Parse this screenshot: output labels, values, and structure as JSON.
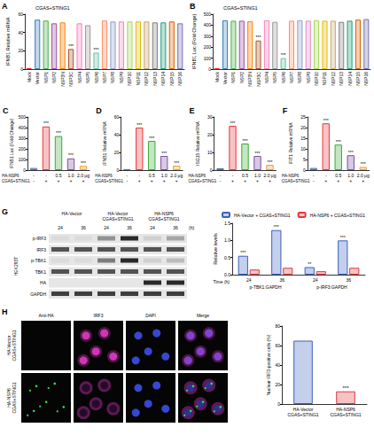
{
  "chart_data": [
    {
      "panel": "A",
      "type": "bar",
      "annotation": "CGAS+STING1",
      "ylabel": "IFNB1 Relative mRNA",
      "categories": [
        "Mock",
        "Vector",
        "NSP1",
        "NSP2",
        "NSP3N",
        "NSP3C",
        "NSP4",
        "NSP5",
        "NSP6",
        "NSP7",
        "NSP8",
        "NSP9",
        "NSP10",
        "NSP11",
        "NSP12",
        "NSP13",
        "NSP14",
        "NSP15",
        "NSP16"
      ],
      "values": [
        1,
        54,
        53,
        50,
        51,
        22,
        50,
        48,
        18,
        53,
        52,
        52,
        52,
        52,
        52,
        51,
        51,
        52,
        50
      ],
      "colors": [
        "#e41a1c",
        "#377eb8",
        "#4daf4a",
        "#984ea3",
        "#ff7f00",
        "#a65628",
        "#f781bf",
        "#999999",
        "#66c2a5",
        "#fc8d62",
        "#8da0cb",
        "#e78ac3",
        "#a6d854",
        "#e6b800",
        "#c9a56b",
        "#808080",
        "#1b9e77",
        "#d95f02",
        "#7570b3"
      ],
      "significance": [
        null,
        null,
        null,
        null,
        null,
        "***",
        null,
        null,
        "***",
        null,
        null,
        null,
        null,
        null,
        null,
        null,
        null,
        null,
        null
      ],
      "ylim": [
        0,
        60
      ],
      "yticks": [
        0,
        20,
        40,
        60
      ],
      "grid": false
    },
    {
      "panel": "B",
      "type": "bar",
      "annotation": "CGAS+STING1",
      "ylabel": "IFNB1 Luc (Fold Change)",
      "categories": [
        "Mock",
        "Vector",
        "NSP1",
        "NSP2",
        "NSP3N",
        "NSP3C",
        "NSP4",
        "NSP5",
        "NSP6",
        "NSP7",
        "NSP8",
        "NSP9",
        "NSP10",
        "NSP11",
        "NSP12",
        "NSP13",
        "NSP14",
        "NSP15",
        "NSP16"
      ],
      "values": [
        5,
        445,
        440,
        440,
        435,
        260,
        445,
        430,
        100,
        440,
        445,
        440,
        445,
        440,
        440,
        430,
        440,
        450,
        455
      ],
      "colors": [
        "#e41a1c",
        "#377eb8",
        "#4daf4a",
        "#984ea3",
        "#ff7f00",
        "#a65628",
        "#f781bf",
        "#999999",
        "#66c2a5",
        "#fc8d62",
        "#8da0cb",
        "#e78ac3",
        "#a6d854",
        "#e6b800",
        "#c9a56b",
        "#808080",
        "#1b9e77",
        "#d95f02",
        "#7570b3"
      ],
      "significance": [
        null,
        null,
        null,
        null,
        null,
        "***",
        null,
        null,
        "***",
        null,
        null,
        null,
        null,
        null,
        null,
        null,
        null,
        null,
        null
      ],
      "ylim": [
        0,
        500
      ],
      "yticks": [
        0,
        100,
        200,
        300,
        400,
        500
      ],
      "grid": false
    },
    {
      "panel": "C",
      "type": "bar",
      "ylabel": "IFNB1 Luc (Fold Change)",
      "row_labels": [
        "HA-NSP6",
        "CGAS+STING1"
      ],
      "categories": [
        "-\n-",
        "-\n+",
        "0.5\n+",
        "1.0\n+",
        "2.0 μg\n+"
      ],
      "values": [
        20,
        410,
        320,
        110,
        40
      ],
      "colors": [
        "#4a6fb5",
        "#e8383d",
        "#3aaa35",
        "#7b4fa0",
        "#f0a030"
      ],
      "significance": [
        null,
        "***",
        "***",
        "***",
        "***"
      ],
      "ylim": [
        0,
        500
      ],
      "yticks": [
        0,
        100,
        200,
        300,
        400,
        500
      ],
      "grid": false
    },
    {
      "panel": "D",
      "type": "bar",
      "ylabel": "IFNB1 Relative mRNA",
      "row_labels": [
        "HA-NSP6",
        "CGAS+STING1"
      ],
      "categories": [
        "-\n-",
        "-\n+",
        "0.5\n+",
        "1.0\n+",
        "2.0 μg\n+"
      ],
      "values": [
        1,
        48,
        33,
        16,
        5
      ],
      "colors": [
        "#4a6fb5",
        "#e8383d",
        "#3aaa35",
        "#7b4fa0",
        "#f0a030"
      ],
      "significance": [
        null,
        "***",
        "***",
        "***",
        "***"
      ],
      "ylim": [
        0,
        60
      ],
      "yticks": [
        0,
        20,
        40,
        60
      ],
      "grid": false
    },
    {
      "panel": "E",
      "type": "bar",
      "ylabel": "ISG15 Relative mRNA",
      "row_labels": [
        "HA-NSP6",
        "CGAS+STING1"
      ],
      "categories": [
        "-\n-",
        "-\n+",
        "0.5\n+",
        "1.0\n+",
        "2.0 μg\n+"
      ],
      "values": [
        1,
        25,
        15,
        8,
        3
      ],
      "colors": [
        "#4a6fb5",
        "#e8383d",
        "#3aaa35",
        "#7b4fa0",
        "#f0a030"
      ],
      "significance": [
        null,
        "***",
        "***",
        "***",
        "***"
      ],
      "ylim": [
        0,
        30
      ],
      "yticks": [
        0,
        10,
        20,
        30
      ],
      "grid": false
    },
    {
      "panel": "F",
      "type": "bar",
      "ylabel": "IFIT1 Relative mRNA",
      "row_labels": [
        "HA-NSP6",
        "CGAS+STING1"
      ],
      "categories": [
        "-\n-",
        "-\n+",
        "0.5\n+",
        "1.0\n+",
        "2.0 μg\n+"
      ],
      "values": [
        1,
        22,
        12,
        7,
        1.5
      ],
      "colors": [
        "#4a6fb5",
        "#e8383d",
        "#3aaa35",
        "#7b4fa0",
        "#f0a030"
      ],
      "significance": [
        null,
        "***",
        "***",
        "***",
        "***"
      ],
      "ylim": [
        0,
        25
      ],
      "yticks": [
        0,
        5,
        10,
        15,
        20,
        25
      ],
      "grid": false
    },
    {
      "panel": "G",
      "type": "bar",
      "ylabel": "Relative levels",
      "xlabel": "Time (h)",
      "categories": [
        "24",
        "36",
        "24",
        "36"
      ],
      "group_labels": [
        "p-TBK1:GAPDH",
        "p-IRF3:GAPDH"
      ],
      "series": [
        {
          "name": "HA-Vector + CGAS+STING1",
          "color": "#3b5fc0",
          "values": [
            0.55,
            1.3,
            0.22,
            1.0
          ]
        },
        {
          "name": "HA-NSP6 + CGAS+STING1",
          "color": "#e0393e",
          "values": [
            0.15,
            0.2,
            0.1,
            0.2
          ]
        }
      ],
      "significance": [
        "***",
        "***",
        "**",
        "***"
      ],
      "legend": "top",
      "ylim": [
        0,
        1.5
      ],
      "yticks": [
        {
          "value": 0,
          "label": "0.0"
        },
        0.5,
        {
          "value": 1,
          "label": "1.0"
        },
        1.5
      ],
      "grid": false
    },
    {
      "panel": "H",
      "type": "bar",
      "ylabel": "Nuclear IRF3-positive cells (%)",
      "categories": [
        "HA-Vector\nCGAS+STING1",
        "HA-NSP6\nCGAS+STING1"
      ],
      "values": [
        65,
        13
      ],
      "colors": [
        "#3b5fc0",
        "#e0393e"
      ],
      "significance": [
        null,
        "***"
      ],
      "ylim": [
        0,
        80
      ],
      "yticks": [
        0,
        20,
        40,
        60,
        80
      ],
      "grid": false
    }
  ],
  "blot": {
    "cell_line": "HEK293T",
    "groups": [
      "HA-Vector",
      "HA-Vector\nCGAS+STING1",
      "HA-NSP6\nCGAS+STING1"
    ],
    "times": [
      "24",
      "36",
      "24",
      "36",
      "24",
      "36"
    ],
    "time_unit": "(h)",
    "rows": [
      {
        "label": "p-IRF3",
        "intensity": [
          0.05,
          0.05,
          0.4,
          0.9,
          0.1,
          0.3
        ]
      },
      {
        "label": "IRF3",
        "intensity": [
          0.7,
          0.7,
          0.7,
          0.7,
          0.7,
          0.7
        ]
      },
      {
        "label": "p-TBK1",
        "intensity": [
          0.05,
          0.05,
          0.5,
          0.9,
          0.1,
          0.2
        ]
      },
      {
        "label": "TBK1",
        "intensity": [
          0.7,
          0.7,
          0.7,
          0.7,
          0.7,
          0.7
        ]
      },
      {
        "label": "HA",
        "intensity": [
          0,
          0,
          0,
          0,
          0.9,
          0.9
        ]
      },
      {
        "label": "GAPDH",
        "intensity": [
          0.8,
          0.8,
          0.8,
          0.8,
          0.8,
          0.8
        ]
      }
    ]
  },
  "microscopy": {
    "columns": [
      "Anti-HA",
      "IRF3",
      "DAPI",
      "Merge"
    ],
    "rows": [
      "HA-Vector\nCGAS+STING1",
      "HA-NSP6\nCGAS+STING1"
    ]
  }
}
